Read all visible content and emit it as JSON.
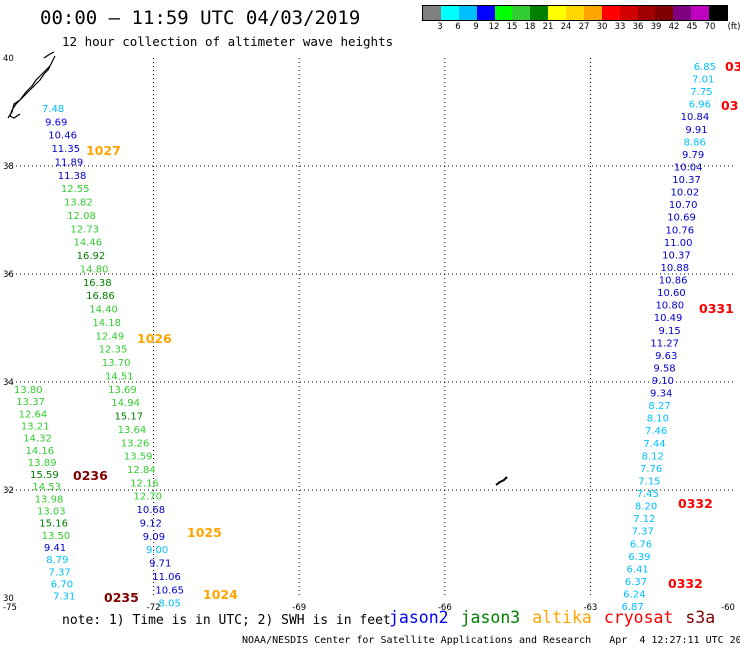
{
  "header": {
    "title": "00:00 – 11:59 UTC 04/03/2019",
    "subtitle": "12 hour collection of altimeter wave heights"
  },
  "colorbar": {
    "unit": "(ft)",
    "colors": [
      "#808080",
      "#00ffff",
      "#00bfff",
      "#0000ff",
      "#00ff00",
      "#32cd32",
      "#008000",
      "#ffff00",
      "#ffd700",
      "#ffa500",
      "#ff0000",
      "#d00000",
      "#a00000",
      "#800000",
      "#800080",
      "#c000c0",
      "#000000"
    ],
    "labels": [
      "3",
      "6",
      "9",
      "12",
      "15",
      "18",
      "21",
      "24",
      "27",
      "30",
      "33",
      "36",
      "39",
      "42",
      "45",
      "70"
    ]
  },
  "chart_data": {
    "type": "map",
    "xlabels": [
      "-75",
      "-72",
      "-69",
      "-66",
      "-63",
      "-60"
    ],
    "ylabels": [
      "40",
      "38",
      "36",
      "34",
      "32",
      "30"
    ],
    "grid": true,
    "tracks": [
      {
        "points": [
          {
            "v": "7.48",
            "color": "#00bfff"
          },
          {
            "v": "9.69",
            "color": "#0000ff"
          },
          {
            "v": "10.46",
            "color": "#0000cd"
          },
          {
            "v": "11.35",
            "color": "#0000cd"
          },
          {
            "v": "11.89",
            "color": "#0000cd"
          },
          {
            "v": "11.38",
            "color": "#0000cd"
          },
          {
            "v": "12.55",
            "color": "#32cd32"
          },
          {
            "v": "13.82",
            "color": "#32cd32"
          },
          {
            "v": "12.08",
            "color": "#32cd32"
          },
          {
            "v": "12.73",
            "color": "#32cd32"
          },
          {
            "v": "14.46",
            "color": "#32cd32"
          },
          {
            "v": "16.92",
            "color": "#008000"
          },
          {
            "v": "14.80",
            "color": "#32cd32"
          },
          {
            "v": "16.38",
            "color": "#008000"
          },
          {
            "v": "16.86",
            "color": "#008000"
          },
          {
            "v": "14.40",
            "color": "#32cd32"
          },
          {
            "v": "14.18",
            "color": "#32cd32"
          },
          {
            "v": "12.49",
            "color": "#32cd32"
          },
          {
            "v": "12.35",
            "color": "#32cd32"
          },
          {
            "v": "13.70",
            "color": "#32cd32"
          },
          {
            "v": "14.51",
            "color": "#32cd32"
          },
          {
            "v": "13.69",
            "color": "#32cd32"
          },
          {
            "v": "14.94",
            "color": "#32cd32"
          },
          {
            "v": "15.17",
            "color": "#008000"
          },
          {
            "v": "13.64",
            "color": "#32cd32"
          },
          {
            "v": "13.26",
            "color": "#32cd32"
          },
          {
            "v": "13.59",
            "color": "#32cd32"
          },
          {
            "v": "12.84",
            "color": "#32cd32"
          },
          {
            "v": "12.16",
            "color": "#32cd32"
          },
          {
            "v": "12.70",
            "color": "#32cd32"
          },
          {
            "v": "10.68",
            "color": "#0000cd"
          },
          {
            "v": "9.12",
            "color": "#0000cd"
          },
          {
            "v": "9.09",
            "color": "#0000cd"
          },
          {
            "v": "9.00",
            "color": "#00bfff"
          },
          {
            "v": "9.71",
            "color": "#0000cd"
          },
          {
            "v": "11.06",
            "color": "#0000cd"
          },
          {
            "v": "10.65",
            "color": "#0000cd"
          },
          {
            "v": "8.05",
            "color": "#00bfff"
          }
        ]
      },
      {
        "points": [
          {
            "v": "13.80",
            "color": "#32cd32"
          },
          {
            "v": "13.37",
            "color": "#32cd32"
          },
          {
            "v": "12.64",
            "color": "#32cd32"
          },
          {
            "v": "13.21",
            "color": "#32cd32"
          },
          {
            "v": "14.32",
            "color": "#32cd32"
          },
          {
            "v": "14.16",
            "color": "#32cd32"
          },
          {
            "v": "13.89",
            "color": "#32cd32"
          },
          {
            "v": "15.59",
            "color": "#008000"
          },
          {
            "v": "14.53",
            "color": "#32cd32"
          },
          {
            "v": "13.98",
            "color": "#32cd32"
          },
          {
            "v": "13.03",
            "color": "#32cd32"
          },
          {
            "v": "15.16",
            "color": "#008000"
          },
          {
            "v": "13.50",
            "color": "#32cd32"
          },
          {
            "v": "9.41",
            "color": "#0000cd"
          },
          {
            "v": "8.79",
            "color": "#00bfff"
          },
          {
            "v": "7.37",
            "color": "#00bfff"
          },
          {
            "v": "6.70",
            "color": "#00bfff"
          },
          {
            "v": "7.31",
            "color": "#00bfff"
          }
        ]
      },
      {
        "points": [
          {
            "v": "6.85",
            "color": "#00bfff"
          },
          {
            "v": "7.01",
            "color": "#00bfff"
          },
          {
            "v": "7.75",
            "color": "#00bfff"
          },
          {
            "v": "6.96",
            "color": "#00bfff"
          },
          {
            "v": "10.84",
            "color": "#0000cd"
          },
          {
            "v": "9.91",
            "color": "#0000cd"
          },
          {
            "v": "8.86",
            "color": "#00bfff"
          },
          {
            "v": "9.79",
            "color": "#0000cd"
          },
          {
            "v": "10.04",
            "color": "#0000cd"
          },
          {
            "v": "10.37",
            "color": "#0000cd"
          },
          {
            "v": "10.02",
            "color": "#0000cd"
          },
          {
            "v": "10.70",
            "color": "#0000cd"
          },
          {
            "v": "10.69",
            "color": "#0000cd"
          },
          {
            "v": "10.76",
            "color": "#0000cd"
          },
          {
            "v": "11.00",
            "color": "#0000cd"
          },
          {
            "v": "10.37",
            "color": "#0000cd"
          },
          {
            "v": "10.88",
            "color": "#0000cd"
          },
          {
            "v": "10.86",
            "color": "#0000cd"
          },
          {
            "v": "10.60",
            "color": "#0000cd"
          },
          {
            "v": "10.80",
            "color": "#0000cd"
          },
          {
            "v": "10.49",
            "color": "#0000cd"
          },
          {
            "v": "9.15",
            "color": "#0000cd"
          },
          {
            "v": "11.27",
            "color": "#0000cd"
          },
          {
            "v": "9.63",
            "color": "#0000cd"
          },
          {
            "v": "9.58",
            "color": "#0000cd"
          },
          {
            "v": "9.10",
            "color": "#0000cd"
          },
          {
            "v": "9.34",
            "color": "#0000cd"
          },
          {
            "v": "8.27",
            "color": "#00bfff"
          },
          {
            "v": "8.10",
            "color": "#00bfff"
          },
          {
            "v": "7.46",
            "color": "#00bfff"
          },
          {
            "v": "7.44",
            "color": "#00bfff"
          },
          {
            "v": "8.12",
            "color": "#00bfff"
          },
          {
            "v": "7.76",
            "color": "#00bfff"
          },
          {
            "v": "7.15",
            "color": "#00bfff"
          },
          {
            "v": "7.45",
            "color": "#00bfff"
          },
          {
            "v": "8.20",
            "color": "#00bfff"
          },
          {
            "v": "7.12",
            "color": "#00bfff"
          },
          {
            "v": "7.37",
            "color": "#00bfff"
          },
          {
            "v": "6.76",
            "color": "#00bfff"
          },
          {
            "v": "6.39",
            "color": "#00bfff"
          },
          {
            "v": "6.41",
            "color": "#00bfff"
          },
          {
            "v": "6.37",
            "color": "#00bfff"
          },
          {
            "v": "6.24",
            "color": "#00bfff"
          },
          {
            "v": "6.87",
            "color": "#00bfff"
          }
        ]
      }
    ],
    "time_labels": [
      {
        "t": "1027",
        "color": "#ffa500"
      },
      {
        "t": "1026",
        "color": "#ffa500"
      },
      {
        "t": "1025",
        "color": "#ffa500"
      },
      {
        "t": "1024",
        "color": "#ffa500"
      },
      {
        "t": "0236",
        "color": "#800000"
      },
      {
        "t": "0235",
        "color": "#800000"
      },
      {
        "t": "03",
        "color": "#ff0000"
      },
      {
        "t": "03",
        "color": "#ff0000"
      },
      {
        "t": "0331",
        "color": "#ff0000"
      },
      {
        "t": "0332",
        "color": "#ff0000"
      },
      {
        "t": "0332",
        "color": "#ff0000"
      }
    ]
  },
  "legend": {
    "note": "note: 1) Time is in UTC; 2) SWH is in feet",
    "satellites": [
      {
        "name": "jason2",
        "color": "#0000ff"
      },
      {
        "name": "jason3",
        "color": "#008000"
      },
      {
        "name": "altika",
        "color": "#ffa500"
      },
      {
        "name": "cryosat",
        "color": "#ff0000"
      },
      {
        "name": "s3a",
        "color": "#800000"
      }
    ]
  },
  "credit": "NOAA/NESDIS Center for Satellite Applications and Research   Apr  4 12:27:11 UTC 2019"
}
